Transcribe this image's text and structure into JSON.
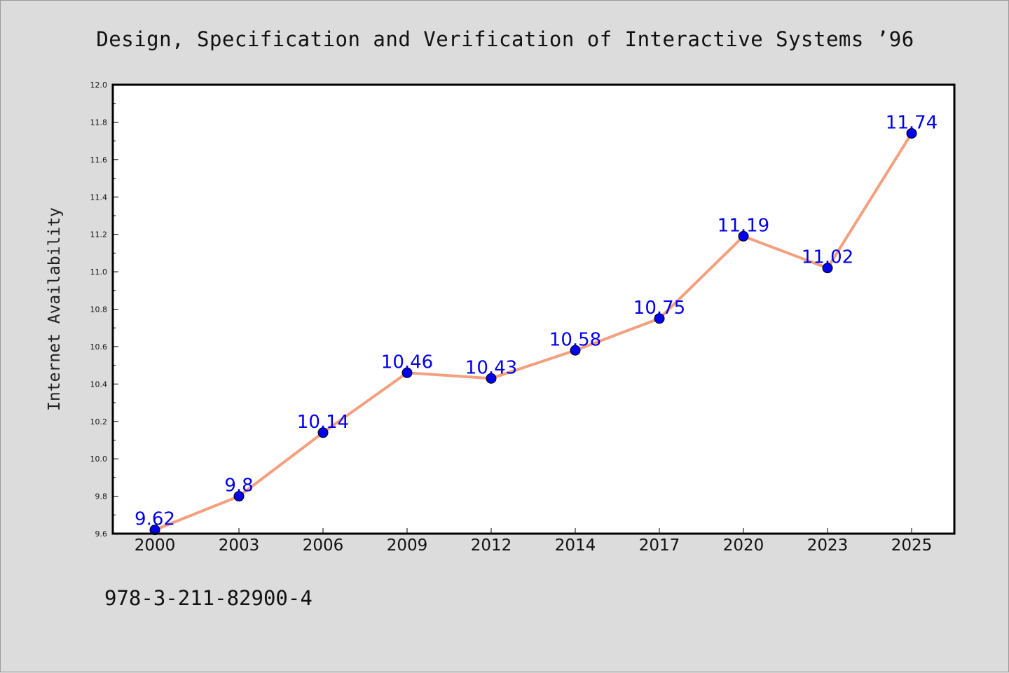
{
  "chart_data": {
    "type": "line",
    "title": "Design, Specification and Verification of Interactive Systems ’96",
    "ylabel": "Internet Availability",
    "xlabel": "",
    "categories": [
      "2000",
      "2003",
      "2006",
      "2009",
      "2012",
      "2014",
      "2017",
      "2020",
      "2023",
      "2025"
    ],
    "series": [
      {
        "values": [
          9.62,
          9.8,
          10.14,
          10.46,
          10.43,
          10.58,
          10.75,
          11.19,
          11.02,
          11.74
        ]
      }
    ],
    "ylim": [
      9.6,
      12.0
    ],
    "yticks": [
      "9.6",
      "9.8",
      "10.0",
      "10.2",
      "10.4",
      "10.6",
      "10.8",
      "11.0",
      "11.2",
      "11.4",
      "11.6",
      "11.8",
      "12.0"
    ],
    "data_labels": [
      "9.62",
      "9.8",
      "10.14",
      "10.46",
      "10.43",
      "10.58",
      "10.75",
      "11.19",
      "11.02",
      "11.74"
    ],
    "grid": false,
    "legend": "none",
    "colors": {
      "line": "#f4a07f",
      "marker": "#0000ee",
      "label": "#0000ee",
      "background": "#dcdcdc",
      "plot": "#ffffff"
    }
  },
  "footer_text": "978-3-211-82900-4"
}
